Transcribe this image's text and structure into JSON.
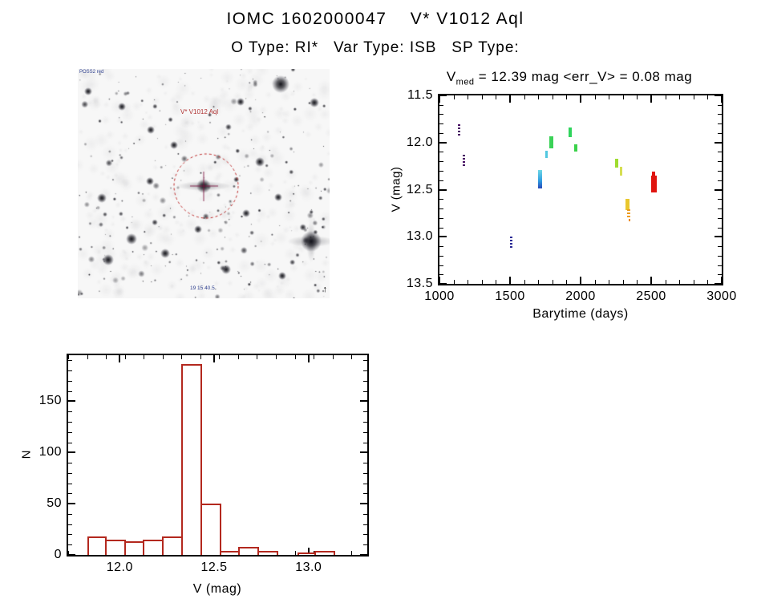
{
  "header": {
    "title": "IOMC 1602000047    V* V1012 Aql",
    "subtitle": "O Type: RI*   Var Type: ISB   SP Type:"
  },
  "finding_chart": {
    "survey_label": "POSS2 red",
    "target_label": "V* V1012 Aql",
    "coords_label": "19 15 40.5",
    "north_arrow": "↑",
    "circle_color": "#BE2828"
  },
  "chart_data": [
    {
      "type": "scatter",
      "title": {
        "var": "V",
        "sub": "med",
        "rest": " = 12.39 mag <err_V> = 0.08 mag"
      },
      "xlabel": "Barytime (days)",
      "ylabel": "V (mag)",
      "xlim": [
        1000,
        3000
      ],
      "ylim": [
        11.5,
        13.5
      ],
      "y_inverted": true,
      "grid": false,
      "xticks": {
        "values": [
          1000,
          1500,
          2000,
          2500,
          3000
        ],
        "labels": [
          "1000",
          "1500",
          "2000",
          "2500",
          "3000"
        ],
        "minor_step": 100
      },
      "yticks": {
        "values": [
          11.5,
          12.0,
          12.5,
          13.0,
          13.5
        ],
        "labels": [
          "11.5",
          "12.0",
          "12.5",
          "13.0",
          "13.5"
        ],
        "minor_step": 0.1
      },
      "clusters": [
        {
          "t": 1141,
          "v1": 11.81,
          "v2": 11.94,
          "w": 3,
          "color": "#470F63",
          "dashed": true
        },
        {
          "t": 1176,
          "v1": 12.13,
          "v2": 12.27,
          "w": 3,
          "color": "#470F63",
          "dashed": true
        },
        {
          "t": 1506,
          "v1": 13.0,
          "v2": 13.13,
          "w": 3,
          "color": "#2B2B96",
          "dashed": true
        },
        {
          "t": 1713,
          "v1": 12.29,
          "v2": 12.49,
          "w": 5,
          "colors": [
            "#6FD8E6",
            "#2E9BE0",
            "#2847B8"
          ]
        },
        {
          "t": 1757,
          "v1": 12.09,
          "v2": 12.16,
          "w": 3,
          "color": "#52C8E0"
        },
        {
          "t": 1792,
          "v1": 11.93,
          "v2": 12.06,
          "w": 5,
          "color": "#3BD257"
        },
        {
          "t": 1926,
          "v1": 11.84,
          "v2": 11.94,
          "w": 4,
          "color": "#2FD45C"
        },
        {
          "t": 1968,
          "v1": 12.02,
          "v2": 12.1,
          "w": 4,
          "color": "#3BD24B"
        },
        {
          "t": 2254,
          "v1": 12.17,
          "v2": 12.27,
          "w": 4,
          "color": "#9FDC30"
        },
        {
          "t": 2288,
          "v1": 12.26,
          "v2": 12.35,
          "w": 3,
          "color": "#D6DE52"
        },
        {
          "t": 2330,
          "v1": 12.6,
          "v2": 12.72,
          "w": 5,
          "color": "#E9C72E"
        },
        {
          "t": 2342,
          "v1": 12.71,
          "v2": 12.79,
          "w": 4,
          "color": "#EE9C20",
          "dashed": true
        },
        {
          "t": 2347,
          "v1": 12.81,
          "v2": 12.84,
          "w": 2,
          "color": "#EE8A18"
        },
        {
          "t": 2518,
          "v1": 12.31,
          "v2": 12.38,
          "w": 4,
          "color": "#E01510"
        },
        {
          "t": 2518,
          "v1": 12.35,
          "v2": 12.53,
          "w": 7,
          "color": "#E01510"
        }
      ]
    },
    {
      "type": "bar",
      "xlabel": "V (mag)",
      "ylabel": "N",
      "xlim": [
        11.727,
        13.311
      ],
      "ylim": [
        0,
        195
      ],
      "grid": false,
      "xticks": {
        "values": [
          12.0,
          12.5,
          13.0
        ],
        "labels": [
          "12.0",
          "12.5",
          "13.0"
        ],
        "minor_step": 0.1
      },
      "yticks": {
        "values": [
          0,
          50,
          100,
          150
        ],
        "labels": [
          "0",
          "50",
          "100",
          "150"
        ],
        "minor_step": 10
      },
      "bins": {
        "start": 11.829,
        "width": 0.101
      },
      "counts": [
        18,
        15,
        13,
        15,
        18,
        186,
        50,
        4,
        8,
        4,
        0,
        2,
        4
      ],
      "bar_color": "#B3281E"
    }
  ]
}
